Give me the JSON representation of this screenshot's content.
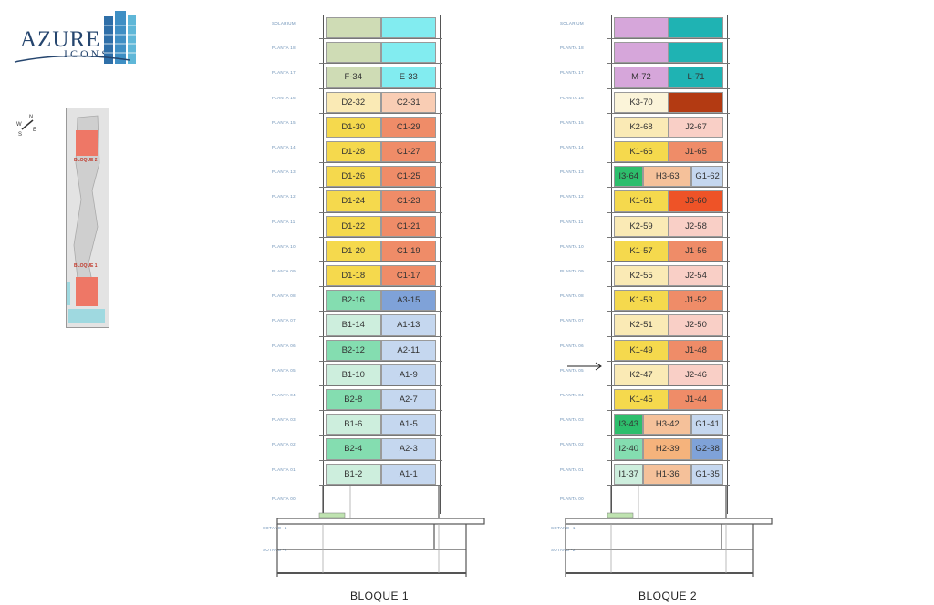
{
  "logo": {
    "name": "AZURE",
    "sub": "ICONS"
  },
  "site_plan": {
    "bloque2": "BLOQUE 2",
    "bloque1": "BLOQUE 1"
  },
  "compass": {
    "n": "N",
    "s": "S",
    "e": "E",
    "w": "W"
  },
  "colors": {
    "grey_green": "#cfdcb5",
    "aqua": "#82ecf0",
    "pale_yellow": "#faeab5",
    "peach": "#f9cdb4",
    "yellow": "#f5d94d",
    "coral": "#ef8c68",
    "green": "#84ddb0",
    "blue": "#7fa2d8",
    "light_green": "#cdeedd",
    "light_blue": "#c5d7ef",
    "lavender": "#d6a6da",
    "teal": "#1fb3b3",
    "cream": "#fbf4d9",
    "dark_red": "#b33a12",
    "dark_green": "#2dbe6c",
    "orange": "#f5b37c",
    "tan": "#f5c19a",
    "red_orange": "#ee5327",
    "pink": "#f9cfc6"
  },
  "building1": {
    "name": "BLOQUE 1",
    "floors": [
      {
        "label": "SOLARIUM",
        "units": [
          {
            "t": "",
            "c": "grey_green"
          },
          {
            "t": "",
            "c": "aqua"
          }
        ]
      },
      {
        "label": "PLANTA 18",
        "units": [
          {
            "t": "",
            "c": "grey_green"
          },
          {
            "t": "",
            "c": "aqua"
          }
        ]
      },
      {
        "label": "PLANTA 17",
        "units": [
          {
            "t": "F-34",
            "c": "grey_green"
          },
          {
            "t": "E-33",
            "c": "aqua"
          }
        ]
      },
      {
        "label": "PLANTA 16",
        "units": [
          {
            "t": "D2-32",
            "c": "pale_yellow"
          },
          {
            "t": "C2-31",
            "c": "peach"
          }
        ]
      },
      {
        "label": "PLANTA 15",
        "units": [
          {
            "t": "D1-30",
            "c": "yellow"
          },
          {
            "t": "C1-29",
            "c": "coral"
          }
        ]
      },
      {
        "label": "PLANTA 14",
        "units": [
          {
            "t": "D1-28",
            "c": "yellow"
          },
          {
            "t": "C1-27",
            "c": "coral"
          }
        ]
      },
      {
        "label": "PLANTA 13",
        "units": [
          {
            "t": "D1-26",
            "c": "yellow"
          },
          {
            "t": "C1-25",
            "c": "coral"
          }
        ]
      },
      {
        "label": "PLANTA 12",
        "units": [
          {
            "t": "D1-24",
            "c": "yellow"
          },
          {
            "t": "C1-23",
            "c": "coral"
          }
        ]
      },
      {
        "label": "PLANTA 11",
        "units": [
          {
            "t": "D1-22",
            "c": "yellow"
          },
          {
            "t": "C1-21",
            "c": "coral"
          }
        ]
      },
      {
        "label": "PLANTA 10",
        "units": [
          {
            "t": "D1-20",
            "c": "yellow"
          },
          {
            "t": "C1-19",
            "c": "coral"
          }
        ]
      },
      {
        "label": "PLANTA 09",
        "units": [
          {
            "t": "D1-18",
            "c": "yellow"
          },
          {
            "t": "C1-17",
            "c": "coral"
          }
        ]
      },
      {
        "label": "PLANTA 08",
        "units": [
          {
            "t": "B2-16",
            "c": "green"
          },
          {
            "t": "A3-15",
            "c": "blue"
          }
        ]
      },
      {
        "label": "PLANTA 07",
        "units": [
          {
            "t": "B1-14",
            "c": "light_green"
          },
          {
            "t": "A1-13",
            "c": "light_blue"
          }
        ]
      },
      {
        "label": "PLANTA 06",
        "units": [
          {
            "t": "B2-12",
            "c": "green"
          },
          {
            "t": "A2-11",
            "c": "light_blue"
          }
        ]
      },
      {
        "label": "PLANTA 05",
        "units": [
          {
            "t": "B1-10",
            "c": "light_green"
          },
          {
            "t": "A1-9",
            "c": "light_blue"
          }
        ]
      },
      {
        "label": "PLANTA 04",
        "units": [
          {
            "t": "B2-8",
            "c": "green"
          },
          {
            "t": "A2-7",
            "c": "light_blue"
          }
        ]
      },
      {
        "label": "PLANTA 03",
        "units": [
          {
            "t": "B1-6",
            "c": "light_green"
          },
          {
            "t": "A1-5",
            "c": "light_blue"
          }
        ]
      },
      {
        "label": "PLANTA 02",
        "units": [
          {
            "t": "B2-4",
            "c": "green"
          },
          {
            "t": "A2-3",
            "c": "light_blue"
          }
        ]
      },
      {
        "label": "PLANTA 01",
        "units": [
          {
            "t": "B1-2",
            "c": "light_green"
          },
          {
            "t": "A1-1",
            "c": "light_blue"
          }
        ]
      }
    ],
    "lower": [
      "PLANTA 00",
      "SOTANO -1",
      "SOTANO -2"
    ]
  },
  "building2": {
    "name": "BLOQUE 2",
    "floors": [
      {
        "label": "SOLARIUM",
        "units": [
          {
            "t": "",
            "c": "lavender"
          },
          {
            "t": "",
            "c": "teal"
          }
        ]
      },
      {
        "label": "PLANTA 18",
        "units": [
          {
            "t": "",
            "c": "lavender"
          },
          {
            "t": "",
            "c": "teal"
          }
        ]
      },
      {
        "label": "PLANTA 17",
        "units": [
          {
            "t": "M-72",
            "c": "lavender"
          },
          {
            "t": "L-71",
            "c": "teal"
          }
        ]
      },
      {
        "label": "PLANTA 16",
        "units": [
          {
            "t": "K3-70",
            "c": "cream"
          },
          {
            "t": "",
            "c": "dark_red"
          }
        ]
      },
      {
        "label": "PLANTA 15",
        "units": [
          {
            "t": "K2-68",
            "c": "pale_yellow"
          },
          {
            "t": "J2-67",
            "c": "pink"
          }
        ]
      },
      {
        "label": "PLANTA 14",
        "units": [
          {
            "t": "K1-66",
            "c": "yellow"
          },
          {
            "t": "J1-65",
            "c": "coral"
          }
        ]
      },
      {
        "label": "PLANTA 13",
        "units": [
          {
            "t": "I3-64",
            "c": "dark_green"
          },
          {
            "t": "H3-63",
            "c": "tan"
          },
          {
            "t": "G1-62",
            "c": "light_blue"
          }
        ]
      },
      {
        "label": "PLANTA 12",
        "units": [
          {
            "t": "K1-61",
            "c": "yellow"
          },
          {
            "t": "J3-60",
            "c": "red_orange"
          }
        ]
      },
      {
        "label": "PLANTA 11",
        "units": [
          {
            "t": "K2-59",
            "c": "pale_yellow"
          },
          {
            "t": "J2-58",
            "c": "pink"
          }
        ]
      },
      {
        "label": "PLANTA 10",
        "units": [
          {
            "t": "K1-57",
            "c": "yellow"
          },
          {
            "t": "J1-56",
            "c": "coral"
          }
        ]
      },
      {
        "label": "PLANTA 09",
        "units": [
          {
            "t": "K2-55",
            "c": "pale_yellow"
          },
          {
            "t": "J2-54",
            "c": "pink"
          }
        ]
      },
      {
        "label": "PLANTA 08",
        "units": [
          {
            "t": "K1-53",
            "c": "yellow"
          },
          {
            "t": "J1-52",
            "c": "coral"
          }
        ]
      },
      {
        "label": "PLANTA 07",
        "units": [
          {
            "t": "K2-51",
            "c": "pale_yellow"
          },
          {
            "t": "J2-50",
            "c": "pink"
          }
        ]
      },
      {
        "label": "PLANTA 06",
        "units": [
          {
            "t": "K1-49",
            "c": "yellow"
          },
          {
            "t": "J1-48",
            "c": "coral"
          }
        ]
      },
      {
        "label": "PLANTA 05",
        "units": [
          {
            "t": "K2-47",
            "c": "pale_yellow"
          },
          {
            "t": "J2-46",
            "c": "pink"
          }
        ]
      },
      {
        "label": "PLANTA 04",
        "units": [
          {
            "t": "K1-45",
            "c": "yellow"
          },
          {
            "t": "J1-44",
            "c": "coral"
          }
        ]
      },
      {
        "label": "PLANTA 03",
        "units": [
          {
            "t": "I3-43",
            "c": "dark_green"
          },
          {
            "t": "H3-42",
            "c": "tan"
          },
          {
            "t": "G1-41",
            "c": "light_blue"
          }
        ]
      },
      {
        "label": "PLANTA 02",
        "units": [
          {
            "t": "I2-40",
            "c": "green"
          },
          {
            "t": "H2-39",
            "c": "orange"
          },
          {
            "t": "G2-38",
            "c": "blue"
          }
        ]
      },
      {
        "label": "PLANTA 01",
        "units": [
          {
            "t": "I1-37",
            "c": "light_green"
          },
          {
            "t": "H1-36",
            "c": "tan"
          },
          {
            "t": "G1-35",
            "c": "light_blue"
          }
        ]
      }
    ],
    "lower": [
      "PLANTA 00",
      "SOTANO -1",
      "SOTANO -2"
    ]
  }
}
